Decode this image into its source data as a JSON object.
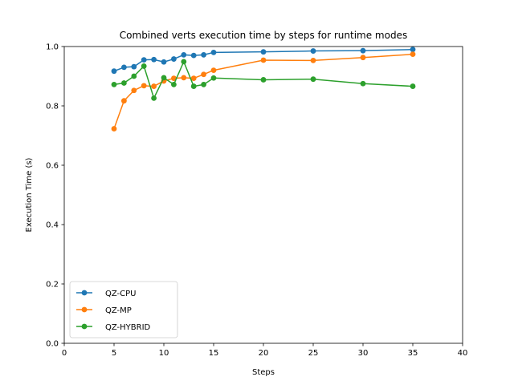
{
  "chart_data": {
    "type": "line",
    "title": "Combined verts execution time by steps for runtime modes",
    "xlabel": "Steps",
    "ylabel": "Execution Time (s)",
    "xlim": [
      0,
      40
    ],
    "ylim": [
      0.0,
      1.0
    ],
    "xticks": [
      "0",
      "5",
      "10",
      "15",
      "20",
      "25",
      "30",
      "35",
      "40"
    ],
    "yticks": [
      "0.0",
      "0.2",
      "0.4",
      "0.6",
      "0.8",
      "1.0"
    ],
    "grid": false,
    "legend_position": "lower-left",
    "x": [
      5,
      6,
      7,
      8,
      9,
      10,
      11,
      12,
      13,
      14,
      15,
      20,
      25,
      30,
      35
    ],
    "series": [
      {
        "name": "QZ-CPU",
        "color": "#1f77b4",
        "values": [
          0.917,
          0.93,
          0.932,
          0.955,
          0.956,
          0.948,
          0.958,
          0.972,
          0.97,
          0.972,
          0.98,
          0.982,
          0.985,
          0.986,
          0.99
        ]
      },
      {
        "name": "QZ-MP",
        "color": "#ff7f0e",
        "values": [
          0.723,
          0.817,
          0.852,
          0.868,
          0.866,
          0.884,
          0.893,
          0.895,
          0.893,
          0.906,
          0.92,
          0.954,
          0.953,
          0.963,
          0.974
        ]
      },
      {
        "name": "QZ-HYBRID",
        "color": "#2ca02c",
        "values": [
          0.872,
          0.877,
          0.9,
          0.934,
          0.826,
          0.895,
          0.872,
          0.949,
          0.866,
          0.872,
          0.894,
          0.888,
          0.89,
          0.875,
          0.866
        ]
      }
    ]
  }
}
